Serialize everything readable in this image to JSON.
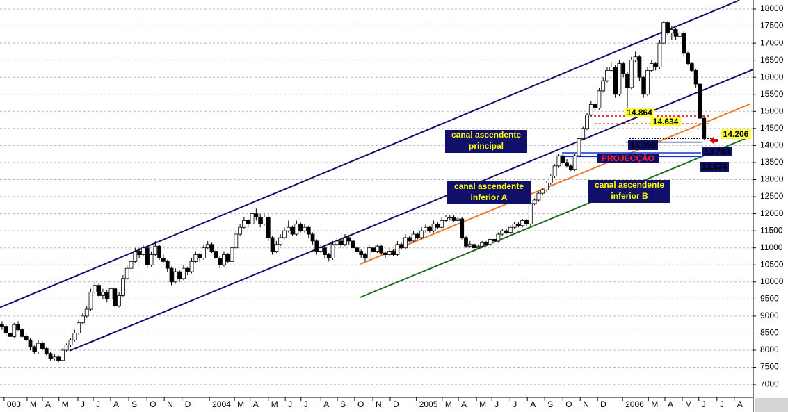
{
  "chart_data": {
    "type": "candlestick",
    "xlim": [
      -0.5,
      186.2
    ],
    "ylim": [
      6615,
      18265
    ],
    "yticks": [
      7000,
      7500,
      8000,
      8500,
      9000,
      9500,
      10000,
      10500,
      11000,
      11500,
      12000,
      12500,
      13000,
      13500,
      14000,
      14500,
      15000,
      15500,
      16000,
      16500,
      17000,
      17500,
      18000
    ],
    "xticks": [
      {
        "value": 1.2,
        "label": "003"
      },
      {
        "value": 6.9,
        "label": "M"
      },
      {
        "value": 10.7,
        "label": "A"
      },
      {
        "value": 14.8,
        "label": "M"
      },
      {
        "value": 19.5,
        "label": "J"
      },
      {
        "value": 23.3,
        "label": "J"
      },
      {
        "value": 27.6,
        "label": "A"
      },
      {
        "value": 32.1,
        "label": "S"
      },
      {
        "value": 36.6,
        "label": "O"
      },
      {
        "value": 40.9,
        "label": "N"
      },
      {
        "value": 45.3,
        "label": "D"
      },
      {
        "value": 52.1,
        "label": "2004"
      },
      {
        "value": 58.3,
        "label": "M"
      },
      {
        "value": 62.2,
        "label": "A"
      },
      {
        "value": 66.7,
        "label": "M"
      },
      {
        "value": 70.9,
        "label": "J"
      },
      {
        "value": 74.8,
        "label": "J"
      },
      {
        "value": 79.7,
        "label": "A"
      },
      {
        "value": 83.8,
        "label": "S"
      },
      {
        "value": 88.1,
        "label": "O"
      },
      {
        "value": 92.6,
        "label": "N"
      },
      {
        "value": 96.9,
        "label": "D"
      },
      {
        "value": 103.4,
        "label": "2005"
      },
      {
        "value": 109.8,
        "label": "M"
      },
      {
        "value": 113.8,
        "label": "A"
      },
      {
        "value": 118.3,
        "label": "M"
      },
      {
        "value": 122.1,
        "label": "J"
      },
      {
        "value": 126.6,
        "label": "J"
      },
      {
        "value": 130.9,
        "label": "A"
      },
      {
        "value": 135.2,
        "label": "S"
      },
      {
        "value": 139.7,
        "label": "O"
      },
      {
        "value": 144,
        "label": "N"
      },
      {
        "value": 148.3,
        "label": "D"
      },
      {
        "value": 154.5,
        "label": "2006"
      },
      {
        "value": 160.9,
        "label": "M"
      },
      {
        "value": 165,
        "label": "A"
      },
      {
        "value": 169.3,
        "label": "M"
      },
      {
        "value": 173.4,
        "label": "J"
      },
      {
        "value": 177.9,
        "label": "J"
      },
      {
        "value": 182.2,
        "label": "A"
      }
    ],
    "grid": true,
    "candles": [
      [
        8750,
        8850,
        8600,
        8700
      ],
      [
        8700,
        8750,
        8400,
        8500
      ],
      [
        8500,
        8600,
        8300,
        8400
      ],
      [
        8400,
        8800,
        8350,
        8750
      ],
      [
        8750,
        8850,
        8550,
        8600
      ],
      [
        8600,
        8650,
        8350,
        8400
      ],
      [
        8400,
        8500,
        8250,
        8300
      ],
      [
        8300,
        8350,
        8000,
        8100
      ],
      [
        8100,
        8150,
        7900,
        7950
      ],
      [
        7950,
        8300,
        7900,
        8200
      ],
      [
        8200,
        8250,
        8000,
        8050
      ],
      [
        8050,
        8100,
        7850,
        7900
      ],
      [
        7900,
        7950,
        7700,
        7750
      ],
      [
        7750,
        7900,
        7700,
        7800
      ],
      [
        7800,
        7850,
        7650,
        7700
      ],
      [
        7700,
        8050,
        7700,
        8000
      ],
      [
        8000,
        8200,
        7950,
        8150
      ],
      [
        8150,
        8350,
        8100,
        8300
      ],
      [
        8300,
        8600,
        8250,
        8500
      ],
      [
        8500,
        8900,
        8450,
        8800
      ],
      [
        8800,
        9100,
        8750,
        9000
      ],
      [
        9000,
        9300,
        8950,
        9200
      ],
      [
        9200,
        9800,
        9150,
        9700
      ],
      [
        9700,
        10000,
        9650,
        9900
      ],
      [
        9900,
        9950,
        9550,
        9600
      ],
      [
        9600,
        9800,
        9500,
        9700
      ],
      [
        9700,
        9750,
        9400,
        9500
      ],
      [
        9500,
        9900,
        9450,
        9800
      ],
      [
        9800,
        9850,
        9250,
        9300
      ],
      [
        9300,
        9700,
        9250,
        9600
      ],
      [
        9600,
        10200,
        9550,
        10100
      ],
      [
        10100,
        10500,
        10050,
        10400
      ],
      [
        10400,
        10700,
        10350,
        10600
      ],
      [
        10600,
        11000,
        10550,
        10900
      ],
      [
        10900,
        11000,
        10700,
        10800
      ],
      [
        10800,
        11100,
        10750,
        11000
      ],
      [
        11000,
        11050,
        10400,
        10500
      ],
      [
        10500,
        10900,
        10450,
        10800
      ],
      [
        10800,
        11200,
        10750,
        11050
      ],
      [
        11050,
        11100,
        10650,
        10700
      ],
      [
        10700,
        10800,
        10550,
        10600
      ],
      [
        10600,
        10650,
        10300,
        10400
      ],
      [
        10400,
        10450,
        9900,
        10000
      ],
      [
        10000,
        10400,
        9950,
        10300
      ],
      [
        10300,
        10350,
        10000,
        10100
      ],
      [
        10100,
        10500,
        10050,
        10400
      ],
      [
        10400,
        10450,
        10200,
        10300
      ],
      [
        10300,
        10700,
        10250,
        10600
      ],
      [
        10600,
        10900,
        10550,
        10800
      ],
      [
        10800,
        10850,
        10600,
        10700
      ],
      [
        10700,
        11100,
        10650,
        11000
      ],
      [
        11000,
        11200,
        10950,
        11100
      ],
      [
        11100,
        11150,
        10850,
        10900
      ],
      [
        10900,
        10950,
        10650,
        10700
      ],
      [
        10700,
        10750,
        10400,
        10500
      ],
      [
        10500,
        10900,
        10450,
        10800
      ],
      [
        10800,
        10850,
        10550,
        10600
      ],
      [
        10600,
        11100,
        10550,
        11000
      ],
      [
        11000,
        11500,
        10950,
        11400
      ],
      [
        11400,
        11700,
        11350,
        11600
      ],
      [
        11600,
        11900,
        11550,
        11800
      ],
      [
        11800,
        11850,
        11600,
        11700
      ],
      [
        11700,
        12200,
        11650,
        12000
      ],
      [
        12000,
        12150,
        11800,
        11900
      ],
      [
        11900,
        12000,
        11600,
        11700
      ],
      [
        11700,
        12000,
        11650,
        11900
      ],
      [
        11900,
        11950,
        11200,
        11300
      ],
      [
        11300,
        11350,
        10800,
        10900
      ],
      [
        10900,
        11200,
        10850,
        11100
      ],
      [
        11100,
        11400,
        11050,
        11300
      ],
      [
        11300,
        11600,
        11250,
        11500
      ],
      [
        11500,
        11800,
        11450,
        11600
      ],
      [
        11600,
        11650,
        11350,
        11400
      ],
      [
        11400,
        11800,
        11350,
        11700
      ],
      [
        11700,
        11750,
        11450,
        11500
      ],
      [
        11500,
        11700,
        11450,
        11600
      ],
      [
        11600,
        11650,
        11300,
        11400
      ],
      [
        11400,
        11450,
        11100,
        11200
      ],
      [
        11200,
        11250,
        10800,
        10900
      ],
      [
        10900,
        11100,
        10850,
        11000
      ],
      [
        11000,
        11050,
        10700,
        10800
      ],
      [
        10800,
        10850,
        10600,
        10700
      ],
      [
        10700,
        11200,
        10650,
        11100
      ],
      [
        11100,
        11300,
        11050,
        11200
      ],
      [
        11200,
        11250,
        11000,
        11100
      ],
      [
        11100,
        11400,
        11050,
        11300
      ],
      [
        11300,
        11350,
        11100,
        11200
      ],
      [
        11200,
        11250,
        10950,
        11000
      ],
      [
        11000,
        11050,
        10850,
        10900
      ],
      [
        10900,
        10950,
        10700,
        10800
      ],
      [
        10800,
        10850,
        10600,
        10700
      ],
      [
        10700,
        11100,
        10650,
        11000
      ],
      [
        11000,
        11050,
        10850,
        10900
      ],
      [
        10900,
        11100,
        10850,
        11050
      ],
      [
        11050,
        11100,
        10800,
        10850
      ],
      [
        10850,
        10900,
        10700,
        10800
      ],
      [
        10800,
        11000,
        10750,
        10900
      ],
      [
        10900,
        10950,
        10750,
        10800
      ],
      [
        10800,
        11200,
        10750,
        11100
      ],
      [
        11100,
        11150,
        10950,
        11000
      ],
      [
        11000,
        11400,
        10950,
        11300
      ],
      [
        11300,
        11350,
        11150,
        11200
      ],
      [
        11200,
        11500,
        11150,
        11400
      ],
      [
        11400,
        11450,
        11250,
        11300
      ],
      [
        11300,
        11600,
        11250,
        11500
      ],
      [
        11500,
        11700,
        11450,
        11600
      ],
      [
        11600,
        11650,
        11450,
        11500
      ],
      [
        11500,
        11800,
        11450,
        11700
      ],
      [
        11700,
        11750,
        11550,
        11600
      ],
      [
        11600,
        11900,
        11550,
        11800
      ],
      [
        11800,
        11950,
        11750,
        11900
      ],
      [
        11900,
        11950,
        11800,
        11900
      ],
      [
        11900,
        11950,
        11750,
        11800
      ],
      [
        11800,
        11900,
        11750,
        11850
      ],
      [
        11850,
        11900,
        11250,
        11300
      ],
      [
        11300,
        11350,
        11000,
        11050
      ],
      [
        11050,
        11200,
        11000,
        11100
      ],
      [
        11100,
        11150,
        10900,
        11000
      ],
      [
        11000,
        11100,
        10950,
        11050
      ],
      [
        11050,
        11200,
        11000,
        11150
      ],
      [
        11150,
        11200,
        11050,
        11100
      ],
      [
        11100,
        11300,
        11050,
        11250
      ],
      [
        11250,
        11300,
        11150,
        11200
      ],
      [
        11200,
        11450,
        11150,
        11400
      ],
      [
        11400,
        11550,
        11350,
        11500
      ],
      [
        11500,
        11550,
        11400,
        11450
      ],
      [
        11450,
        11650,
        11400,
        11600
      ],
      [
        11600,
        11750,
        11550,
        11700
      ],
      [
        11700,
        11750,
        11600,
        11650
      ],
      [
        11650,
        11850,
        11600,
        11800
      ],
      [
        11800,
        11850,
        11650,
        11700
      ],
      [
        11700,
        12350,
        11650,
        12300
      ],
      [
        12300,
        12450,
        12250,
        12400
      ],
      [
        12400,
        12650,
        12350,
        12600
      ],
      [
        12600,
        12750,
        12550,
        12700
      ],
      [
        12700,
        12950,
        12650,
        12900
      ],
      [
        12900,
        13150,
        12850,
        13100
      ],
      [
        13100,
        13450,
        13050,
        13400
      ],
      [
        13400,
        13750,
        13350,
        13700
      ],
      [
        13700,
        13750,
        13450,
        13500
      ],
      [
        13500,
        13600,
        13350,
        13400
      ],
      [
        13400,
        13450,
        13250,
        13300
      ],
      [
        13300,
        13750,
        13250,
        13700
      ],
      [
        13700,
        14250,
        13650,
        14200
      ],
      [
        14200,
        14550,
        14150,
        14500
      ],
      [
        14500,
        14950,
        14450,
        14900
      ],
      [
        14900,
        15300,
        14850,
        15200
      ],
      [
        15200,
        15250,
        15000,
        15100
      ],
      [
        15100,
        15700,
        15050,
        15600
      ],
      [
        15600,
        16000,
        15550,
        15900
      ],
      [
        15900,
        16300,
        15850,
        16200
      ],
      [
        16200,
        16450,
        16150,
        16300
      ],
      [
        16300,
        16350,
        15400,
        15500
      ],
      [
        15500,
        16500,
        15450,
        16400
      ],
      [
        16400,
        16450,
        16000,
        16100
      ],
      [
        16100,
        16150,
        15100,
        15700
      ],
      [
        15700,
        16600,
        15650,
        16500
      ],
      [
        16500,
        16750,
        16450,
        16600
      ],
      [
        16600,
        16650,
        15900,
        16000
      ],
      [
        16000,
        16050,
        15400,
        15500
      ],
      [
        15500,
        16300,
        15450,
        16200
      ],
      [
        16200,
        16500,
        16150,
        16400
      ],
      [
        16400,
        16450,
        16200,
        16300
      ],
      [
        16300,
        17100,
        16250,
        17000
      ],
      [
        17000,
        17650,
        16950,
        17600
      ],
      [
        17600,
        17650,
        17250,
        17300
      ],
      [
        17300,
        17500,
        17100,
        17400
      ],
      [
        17400,
        17450,
        17100,
        17200
      ],
      [
        17200,
        17400,
        17150,
        17300
      ],
      [
        17300,
        17350,
        16600,
        16700
      ],
      [
        16700,
        16750,
        16350,
        16400
      ],
      [
        16400,
        16450,
        16150,
        16200
      ],
      [
        16200,
        16250,
        15700,
        15800
      ],
      [
        15800,
        15850,
        14750,
        14800
      ],
      [
        14800,
        14850,
        14150,
        14206
      ]
    ],
    "trendlines": [
      {
        "color": "#10106a",
        "x": [
          -0.5,
          182.8
        ],
        "y": [
          9250,
          18260
        ]
      },
      {
        "color": "#10106a",
        "x": [
          16.7,
          186.2
        ],
        "y": [
          7980,
          16230
        ]
      },
      {
        "color": "#f07828",
        "x": [
          88.8,
          185.3
        ],
        "y": [
          10525,
          15210
        ]
      },
      {
        "color": "#1e6e1e",
        "x": [
          88.8,
          185.3
        ],
        "y": [
          9548,
          14253
        ]
      }
    ],
    "levels": [
      {
        "value": 14864,
        "label": "14.864",
        "color": "#e00000",
        "background": "#ffff40",
        "line_color": "#e00000"
      },
      {
        "value": 14634,
        "label": "14.634",
        "color": "#e00000",
        "background": "#ffff40",
        "line_color": "#e00000"
      },
      {
        "value": 14206,
        "label": "14.206",
        "color": "#10106a",
        "background": "#ffff40",
        "line_color": "#000000"
      },
      {
        "value": 14098,
        "label": "14.098",
        "color": "#ffffff",
        "background": "#10106a",
        "line_color": "#10106a"
      },
      {
        "value": 13783,
        "label": "13.783",
        "color": "#ff3030",
        "background": "#10106a",
        "line_color": "#1030d0"
      },
      {
        "value": 13674,
        "label": "13.674",
        "color": "#ff3030",
        "background": "#10106a",
        "line_color": "#1030d0"
      }
    ],
    "annotations": [
      {
        "lines": [
          "canal ascendente",
          "principal"
        ]
      },
      {
        "lines": [
          "canal ascendente",
          "inferior A"
        ]
      },
      {
        "lines": [
          "canal ascendente",
          "inferior B"
        ]
      },
      {
        "lines": [
          "PROJECÇÃO"
        ]
      }
    ]
  }
}
